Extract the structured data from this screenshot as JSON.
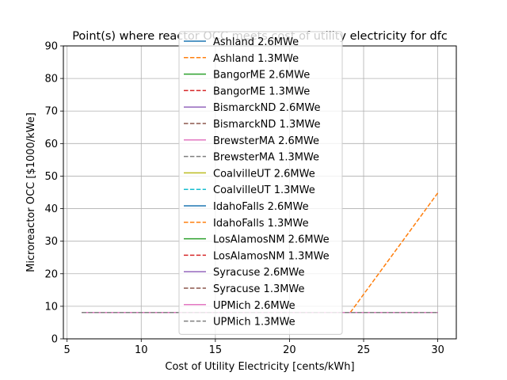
{
  "chart_data": {
    "type": "line",
    "title": "Point(s) where reactor OCC meets cost of utility electricity for dfc",
    "xlabel": "Cost of Utility Electricity [cents/kWh]",
    "ylabel": "Microreactor OCC [$1000/kWe]",
    "xlim": [
      4.75,
      31.25
    ],
    "ylim": [
      0,
      90
    ],
    "xticks": [
      5,
      10,
      15,
      20,
      25,
      30
    ],
    "yticks": [
      0,
      10,
      20,
      30,
      40,
      50,
      60,
      70,
      80,
      90
    ],
    "grid": true,
    "legend_position": "upper center",
    "series": [
      {
        "name": "Ashland 2.6MWe",
        "color": "#1f77b4",
        "dash": "solid",
        "x": [
          6,
          30
        ],
        "y": [
          8.1,
          8.1
        ]
      },
      {
        "name": "Ashland 1.3MWe",
        "color": "#ff7f0e",
        "dash": "dashed",
        "x": [
          6,
          30
        ],
        "y": [
          8.1,
          8.1
        ]
      },
      {
        "name": "BangorME 2.6MWe",
        "color": "#2ca02c",
        "dash": "solid",
        "x": [
          6,
          30
        ],
        "y": [
          8.1,
          8.1
        ]
      },
      {
        "name": "BangorME 1.3MWe",
        "color": "#d62728",
        "dash": "dashed",
        "x": [
          6,
          30
        ],
        "y": [
          8.1,
          8.1
        ]
      },
      {
        "name": "BismarckND 2.6MWe",
        "color": "#9467bd",
        "dash": "solid",
        "x": [
          6,
          30
        ],
        "y": [
          8.1,
          8.1
        ]
      },
      {
        "name": "BismarckND 1.3MWe",
        "color": "#8c564b",
        "dash": "dashed",
        "x": [
          6,
          30
        ],
        "y": [
          8.1,
          8.1
        ]
      },
      {
        "name": "BrewsterMA 2.6MWe",
        "color": "#e377c2",
        "dash": "solid",
        "x": [
          6,
          30
        ],
        "y": [
          8.1,
          8.1
        ]
      },
      {
        "name": "BrewsterMA 1.3MWe",
        "color": "#7f7f7f",
        "dash": "dashed",
        "x": [
          6,
          30
        ],
        "y": [
          8.1,
          8.1
        ]
      },
      {
        "name": "CoalvilleUT 2.6MWe",
        "color": "#bcbd22",
        "dash": "solid",
        "x": [
          6,
          30
        ],
        "y": [
          8.1,
          8.1
        ]
      },
      {
        "name": "CoalvilleUT 1.3MWe",
        "color": "#17becf",
        "dash": "dashed",
        "x": [
          6,
          30
        ],
        "y": [
          8.1,
          8.1
        ]
      },
      {
        "name": "IdahoFalls 2.6MWe",
        "color": "#1f77b4",
        "dash": "solid",
        "x": [
          6,
          30
        ],
        "y": [
          8.1,
          8.1
        ]
      },
      {
        "name": "IdahoFalls 1.3MWe",
        "color": "#ff7f0e",
        "dash": "dashed",
        "x": [
          24.1,
          30
        ],
        "y": [
          8.1,
          44.8
        ]
      },
      {
        "name": "LosAlamosNM 2.6MWe",
        "color": "#2ca02c",
        "dash": "solid",
        "x": [
          6,
          30
        ],
        "y": [
          8.1,
          8.1
        ]
      },
      {
        "name": "LosAlamosNM 1.3MWe",
        "color": "#d62728",
        "dash": "dashed",
        "x": [
          6,
          30
        ],
        "y": [
          8.1,
          8.1
        ]
      },
      {
        "name": "Syracuse 2.6MWe",
        "color": "#9467bd",
        "dash": "solid",
        "x": [
          6,
          30
        ],
        "y": [
          8.1,
          8.1
        ]
      },
      {
        "name": "Syracuse 1.3MWe",
        "color": "#8c564b",
        "dash": "dashed",
        "x": [
          6,
          30
        ],
        "y": [
          8.1,
          8.1
        ]
      },
      {
        "name": "UPMich 2.6MWe",
        "color": "#e377c2",
        "dash": "solid",
        "x": [
          6,
          30
        ],
        "y": [
          8.1,
          8.1
        ]
      },
      {
        "name": "UPMich 1.3MWe",
        "color": "#7f7f7f",
        "dash": "dashed",
        "x": [
          6,
          30
        ],
        "y": [
          8.1,
          8.1
        ]
      }
    ]
  }
}
